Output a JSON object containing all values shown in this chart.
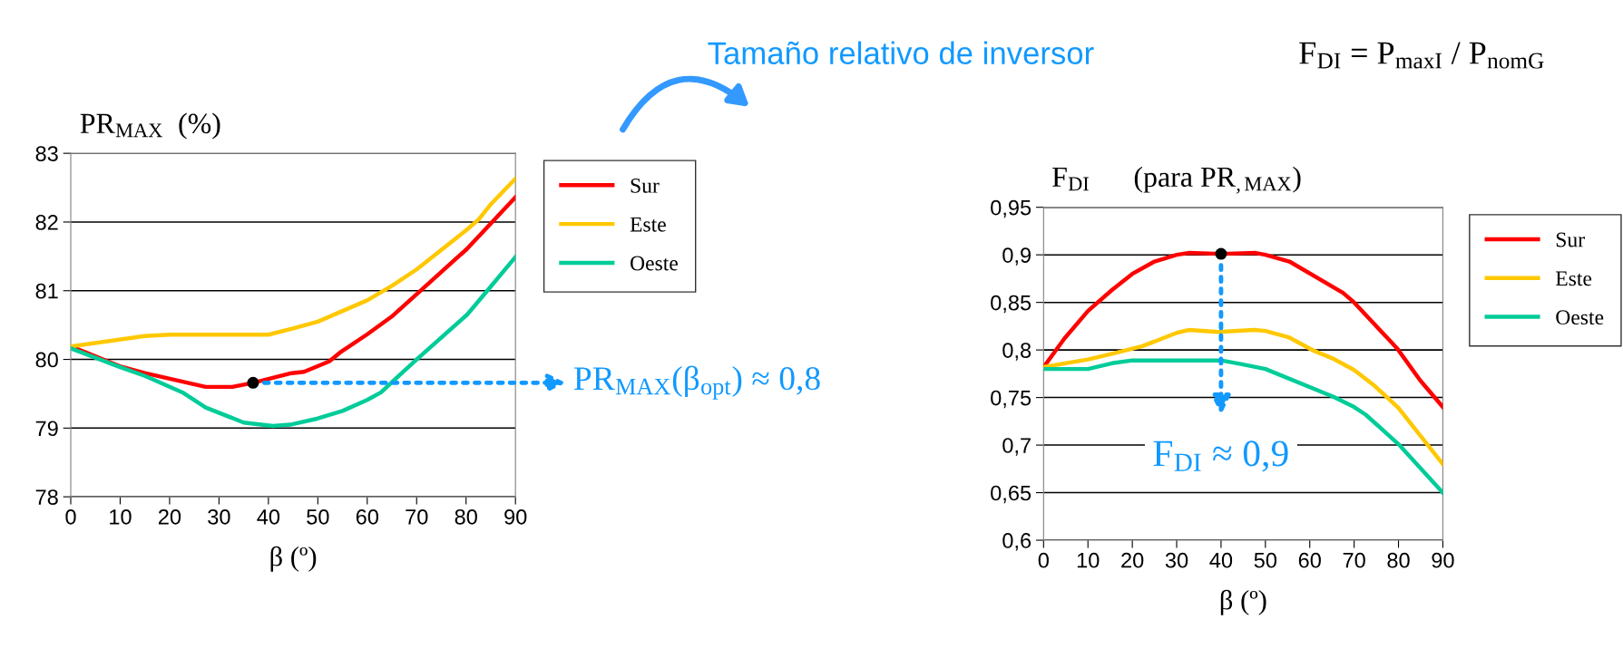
{
  "chart_data": [
    {
      "type": "line",
      "ylabel": "PR$_{MAX}$  (%)",
      "xlabel": "β (º)",
      "xlim": [
        0,
        90
      ],
      "xticks": [
        0,
        10,
        20,
        30,
        40,
        50,
        60,
        70,
        80,
        90
      ],
      "ylim": [
        78,
        83
      ],
      "yticks": [
        78,
        79,
        80,
        81,
        82,
        83
      ],
      "grid": "y",
      "legend": "top right",
      "series": [
        {
          "name": "Sur",
          "color": "#ff0000",
          "x": [
            0,
            9.9,
            15,
            27.3,
            32.7,
            36.9,
            44.7,
            47.2,
            52.3,
            54.5,
            59.9,
            64.9,
            70,
            80.2,
            90
          ],
          "values": [
            80.19,
            79.9,
            79.8,
            79.6,
            79.6,
            79.66,
            79.8,
            79.82,
            79.97,
            80.1,
            80.36,
            80.62,
            80.95,
            81.61,
            82.36
          ]
        },
        {
          "name": "Este",
          "color": "#ffc800",
          "x": [
            0,
            15,
            20,
            40,
            45,
            50,
            60,
            65,
            70,
            80.2,
            82.6,
            84.9,
            90
          ],
          "values": [
            80.19,
            80.34,
            80.36,
            80.36,
            80.45,
            80.55,
            80.86,
            81.07,
            81.31,
            81.89,
            82.04,
            82.25,
            82.63
          ]
        },
        {
          "name": "Oeste",
          "color": "#00cc99",
          "x": [
            0,
            9.9,
            15,
            22.6,
            27.3,
            35,
            40.9,
            44.4,
            50,
            55,
            60,
            62.8,
            65,
            70,
            80.2,
            84.3,
            90
          ],
          "values": [
            80.16,
            79.89,
            79.76,
            79.52,
            79.3,
            79.08,
            79.03,
            79.05,
            79.14,
            79.25,
            79.41,
            79.52,
            79.67,
            80.0,
            80.65,
            81.0,
            81.49
          ]
        },
        {
          "type": "scatter",
          "color": "#000000",
          "x": [
            36.9
          ],
          "values": [
            79.66
          ]
        }
      ],
      "annotations": [
        {
          "text": "PR$_{MAX}$(β$_{opt}$) ≈ 0,8",
          "x": 36.9,
          "y": 79.66
        }
      ]
    },
    {
      "type": "line",
      "title": "Tamaño relativo de inversor",
      "ylabel": "F$_{DI}$      (para PR$_{,MAX}$)",
      "xlabel": "β (º)",
      "xlim": [
        0,
        90
      ],
      "xticks": [
        0,
        10,
        20,
        30,
        40,
        50,
        60,
        70,
        80,
        90
      ],
      "ylim": [
        0.6,
        0.95
      ],
      "yticks": [
        {
          "value": 0.6,
          "label": "0,6"
        },
        {
          "value": 0.65,
          "label": "0,65"
        },
        {
          "value": 0.7,
          "label": "0,7"
        },
        {
          "value": 0.75,
          "label": "0,75"
        },
        {
          "value": 0.8,
          "label": "0,8"
        },
        {
          "value": 0.85,
          "label": "0,85"
        },
        {
          "value": 0.9,
          "label": "0,9"
        },
        {
          "value": 0.95,
          "label": "0,95"
        }
      ],
      "grid": "y",
      "legend": "top right",
      "series": [
        {
          "name": "Sur",
          "color": "#ff0000",
          "x": [
            0,
            4.7,
            10,
            15.4,
            20,
            25,
            30,
            32.7,
            40,
            47.8,
            50,
            55.4,
            67.5,
            70,
            79.8,
            84.9,
            90
          ],
          "values": [
            0.782,
            0.812,
            0.841,
            0.863,
            0.88,
            0.893,
            0.9,
            0.902,
            0.901,
            0.902,
            0.9,
            0.893,
            0.86,
            0.85,
            0.801,
            0.768,
            0.74
          ]
        },
        {
          "name": "Este",
          "color": "#ffc800",
          "x": [
            0,
            10,
            15.4,
            22.3,
            30,
            32.7,
            39.3,
            47.5,
            50,
            55.4,
            61,
            65.2,
            70,
            74.7,
            80,
            90
          ],
          "values": [
            0.782,
            0.79,
            0.796,
            0.804,
            0.818,
            0.821,
            0.819,
            0.821,
            0.82,
            0.813,
            0.799,
            0.791,
            0.779,
            0.762,
            0.739,
            0.68
          ]
        },
        {
          "name": "Oeste",
          "color": "#00cc99",
          "x": [
            0,
            10,
            15.4,
            20,
            40,
            44.7,
            50,
            65.2,
            70,
            72.6,
            80,
            90
          ],
          "values": [
            0.78,
            0.78,
            0.786,
            0.789,
            0.789,
            0.785,
            0.78,
            0.751,
            0.74,
            0.732,
            0.701,
            0.65
          ]
        },
        {
          "type": "scatter",
          "color": "#000000",
          "x": [
            40
          ],
          "values": [
            0.901
          ]
        }
      ],
      "annotations": [
        {
          "text": "F$_{DI}$ ≈ 0,9",
          "x": 40,
          "y": 0.901
        },
        "F$_{DI}$ = P$_{maxI}$ / P$_{nomG}$"
      ]
    }
  ]
}
